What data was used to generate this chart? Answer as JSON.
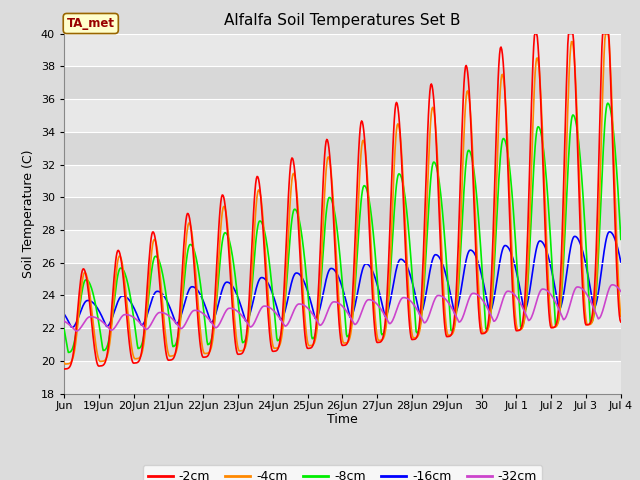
{
  "title": "Alfalfa Soil Temperatures Set B",
  "xlabel": "Time",
  "ylabel": "Soil Temperature (C)",
  "ylim": [
    18,
    40
  ],
  "figsize": [
    6.4,
    4.8
  ],
  "dpi": 100,
  "background_color": "#dcdcdc",
  "plot_bg_color": "#dcdcdc",
  "grid_color": "#ffffff",
  "series": {
    "-2cm": {
      "color": "#ff0000",
      "linewidth": 1.2
    },
    "-4cm": {
      "color": "#ff8800",
      "linewidth": 1.2
    },
    "-8cm": {
      "color": "#00ee00",
      "linewidth": 1.2
    },
    "-16cm": {
      "color": "#0000ff",
      "linewidth": 1.2
    },
    "-32cm": {
      "color": "#cc44cc",
      "linewidth": 1.2
    }
  },
  "ta_met_box_color": "#ffffcc",
  "ta_met_text_color": "#990000",
  "ta_met_border_color": "#996600",
  "num_days": 16,
  "points_per_day": 48,
  "xtick_labels": [
    "Jun",
    "19Jun",
    "20Jun",
    "21Jun",
    "22Jun",
    "23Jun",
    "24Jun",
    "25Jun",
    "26Jun",
    "27Jun",
    "28Jun",
    "29Jun",
    "30",
    "Jul 1",
    "Jul 2",
    "Jul 3",
    "Jul 4"
  ],
  "yticks": [
    18,
    20,
    22,
    24,
    26,
    28,
    30,
    32,
    34,
    36,
    38,
    40
  ]
}
